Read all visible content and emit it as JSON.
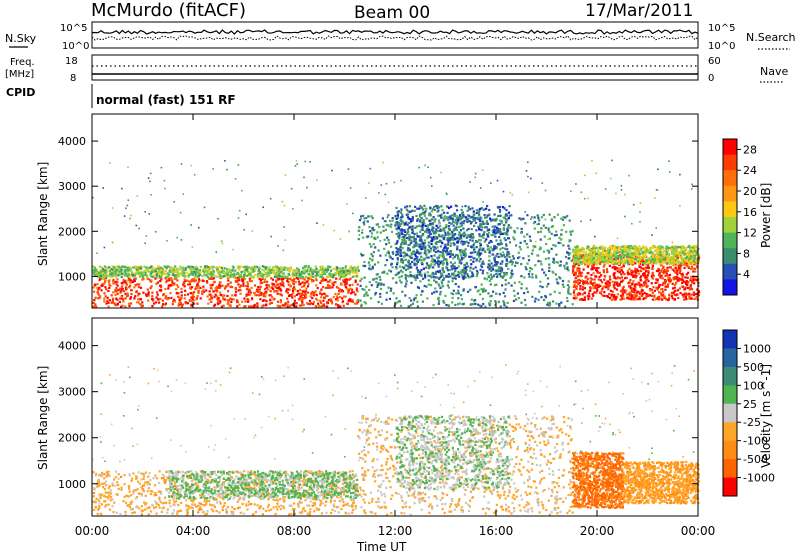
{
  "header": {
    "station": "McMurdo (fitACF)",
    "beam": "Beam 00",
    "date": "17/Mar/2011"
  },
  "summary_panels": {
    "nsky": {
      "label": "N.Sky",
      "ticks": [
        "10^5",
        "10^0"
      ]
    },
    "nsearch": {
      "label": "N.Search",
      "ticks": [
        "10^5",
        "10^0"
      ]
    },
    "freq": {
      "label_line1": "Freq.",
      "label_line2": "[MHz]",
      "ticks": [
        "18",
        "8"
      ]
    },
    "nave": {
      "label": "Nave",
      "ticks": [
        "60",
        "0"
      ]
    },
    "cpid": {
      "label": "CPID",
      "value": "normal (fast) 151 RF"
    }
  },
  "colors": {
    "power_scale": [
      "#1414e6",
      "#2850b4",
      "#3c8c6e",
      "#50b45a",
      "#a0d23c",
      "#ffc814",
      "#ff9614",
      "#ff6e0a",
      "#ff3c00",
      "#ff0000"
    ],
    "velocity_scale": [
      "#1432b4",
      "#2864a0",
      "#3c8c78",
      "#50b450",
      "#c8c8c8",
      "#ffa528",
      "#ff8c14",
      "#ff6400",
      "#ff0000"
    ]
  },
  "chart_data": [
    {
      "type": "heatmap",
      "title": "",
      "ylabel": "Slant Range [km]",
      "xlabel": "",
      "x_tick_labels": [
        "00:00",
        "04:00",
        "08:00",
        "12:00",
        "16:00",
        "20:00",
        "00:00"
      ],
      "y_tick_labels": [
        "1000",
        "2000",
        "3000",
        "4000"
      ],
      "xlim": [
        0,
        24
      ],
      "ylim": [
        300,
        4600
      ],
      "colorbar": {
        "label": "Power [dB]",
        "ticks": [
          "4",
          "8",
          "12",
          "16",
          "20",
          "24",
          "28"
        ],
        "range": [
          0,
          30
        ]
      },
      "regions": [
        {
          "t0": 0,
          "t1": 10.5,
          "r0": 350,
          "r1": 1000,
          "value": 26
        },
        {
          "t0": 0,
          "t1": 10.5,
          "r0": 1000,
          "r1": 1250,
          "value": 12
        },
        {
          "t0": 10.5,
          "t1": 19,
          "r0": 350,
          "r1": 2400,
          "value": 8
        },
        {
          "t0": 12,
          "t1": 16.5,
          "r0": 1000,
          "r1": 2600,
          "value": 6
        },
        {
          "t0": 19,
          "t1": 24,
          "r0": 500,
          "r1": 1500,
          "value": 27
        },
        {
          "t0": 19,
          "t1": 24,
          "r0": 1300,
          "r1": 1700,
          "value": 14
        }
      ]
    },
    {
      "type": "heatmap",
      "title": "",
      "ylabel": "Slant Range [km]",
      "xlabel": "Time UT",
      "x_tick_labels": [
        "00:00",
        "04:00",
        "08:00",
        "12:00",
        "16:00",
        "20:00",
        "00:00"
      ],
      "y_tick_labels": [
        "1000",
        "2000",
        "3000",
        "4000"
      ],
      "xlim": [
        0,
        24
      ],
      "ylim": [
        300,
        4600
      ],
      "colorbar": {
        "label": "Velocity [m s^-1]",
        "ticks": [
          "1000",
          "500",
          "100",
          "25",
          "-25",
          "-100",
          "-500",
          "-1000"
        ],
        "range": [
          -1000,
          1000
        ]
      },
      "regions": [
        {
          "t0": 0,
          "t1": 10.5,
          "r0": 350,
          "r1": 1300,
          "value": -200
        },
        {
          "t0": 3,
          "t1": 10.5,
          "r0": 700,
          "r1": 1300,
          "value": 150
        },
        {
          "t0": 10.5,
          "t1": 19,
          "r0": 350,
          "r1": 2500,
          "value": -150
        },
        {
          "t0": 12,
          "t1": 16.5,
          "r0": 900,
          "r1": 2500,
          "value": 100
        },
        {
          "t0": 19,
          "t1": 21,
          "r0": 500,
          "r1": 1700,
          "value": -600
        },
        {
          "t0": 21,
          "t1": 24,
          "r0": 600,
          "r1": 1500,
          "value": -300
        }
      ]
    }
  ]
}
